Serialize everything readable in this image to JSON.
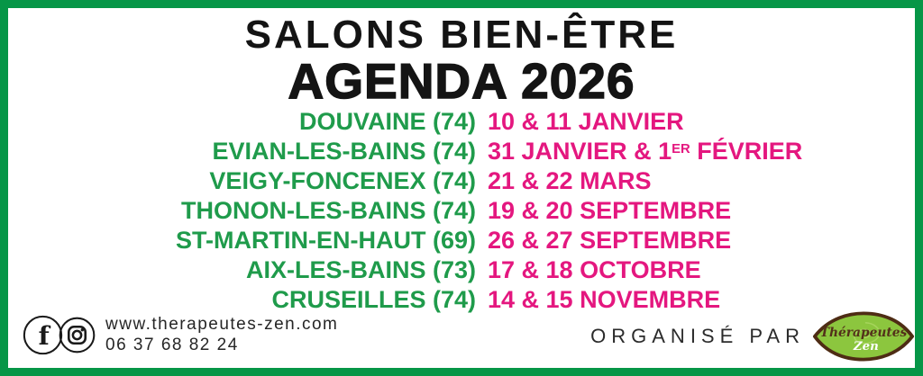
{
  "banner": {
    "title_line1": "SALONS BIEN-ÊTRE",
    "title_line2": "AGENDA 2026"
  },
  "events": [
    {
      "city": "DOUVAINE (74)",
      "dates": "10 & 11 JANVIER"
    },
    {
      "city": "EVIAN-LES-BAINS (74)",
      "dates": "31 JANVIER & 1[ER] FÉVRIER"
    },
    {
      "city": "VEIGY-FONCENEX (74)",
      "dates": "21 & 22 MARS"
    },
    {
      "city": "THONON-LES-BAINS (74)",
      "dates": "19 & 20 SEPTEMBRE"
    },
    {
      "city": "ST-MARTIN-EN-HAUT (69)",
      "dates": "26 & 27 SEPTEMBRE"
    },
    {
      "city": "AIX-LES-BAINS (73)",
      "dates": "17 & 18 OCTOBRE"
    },
    {
      "city": "CRUSEILLES (74)",
      "dates": "14 & 15 NOVEMBRE"
    }
  ],
  "footer": {
    "website": "www.therapeutes-zen.com",
    "phone": "06 37 68 82 24",
    "organised_by": "ORGANISÉ PAR",
    "social_icons": [
      "facebook-icon",
      "instagram-icon"
    ],
    "logo": {
      "line1": "Thérapeutes",
      "line2": "Zen"
    }
  },
  "colors": {
    "border_green": "#069647",
    "city_green": "#1f9b4b",
    "date_pink": "#e4177f",
    "title_black": "#141414",
    "footer_text": "#2b2b2b",
    "logo_fill_green": "#8cc63e",
    "logo_brown": "#4e2c14"
  }
}
